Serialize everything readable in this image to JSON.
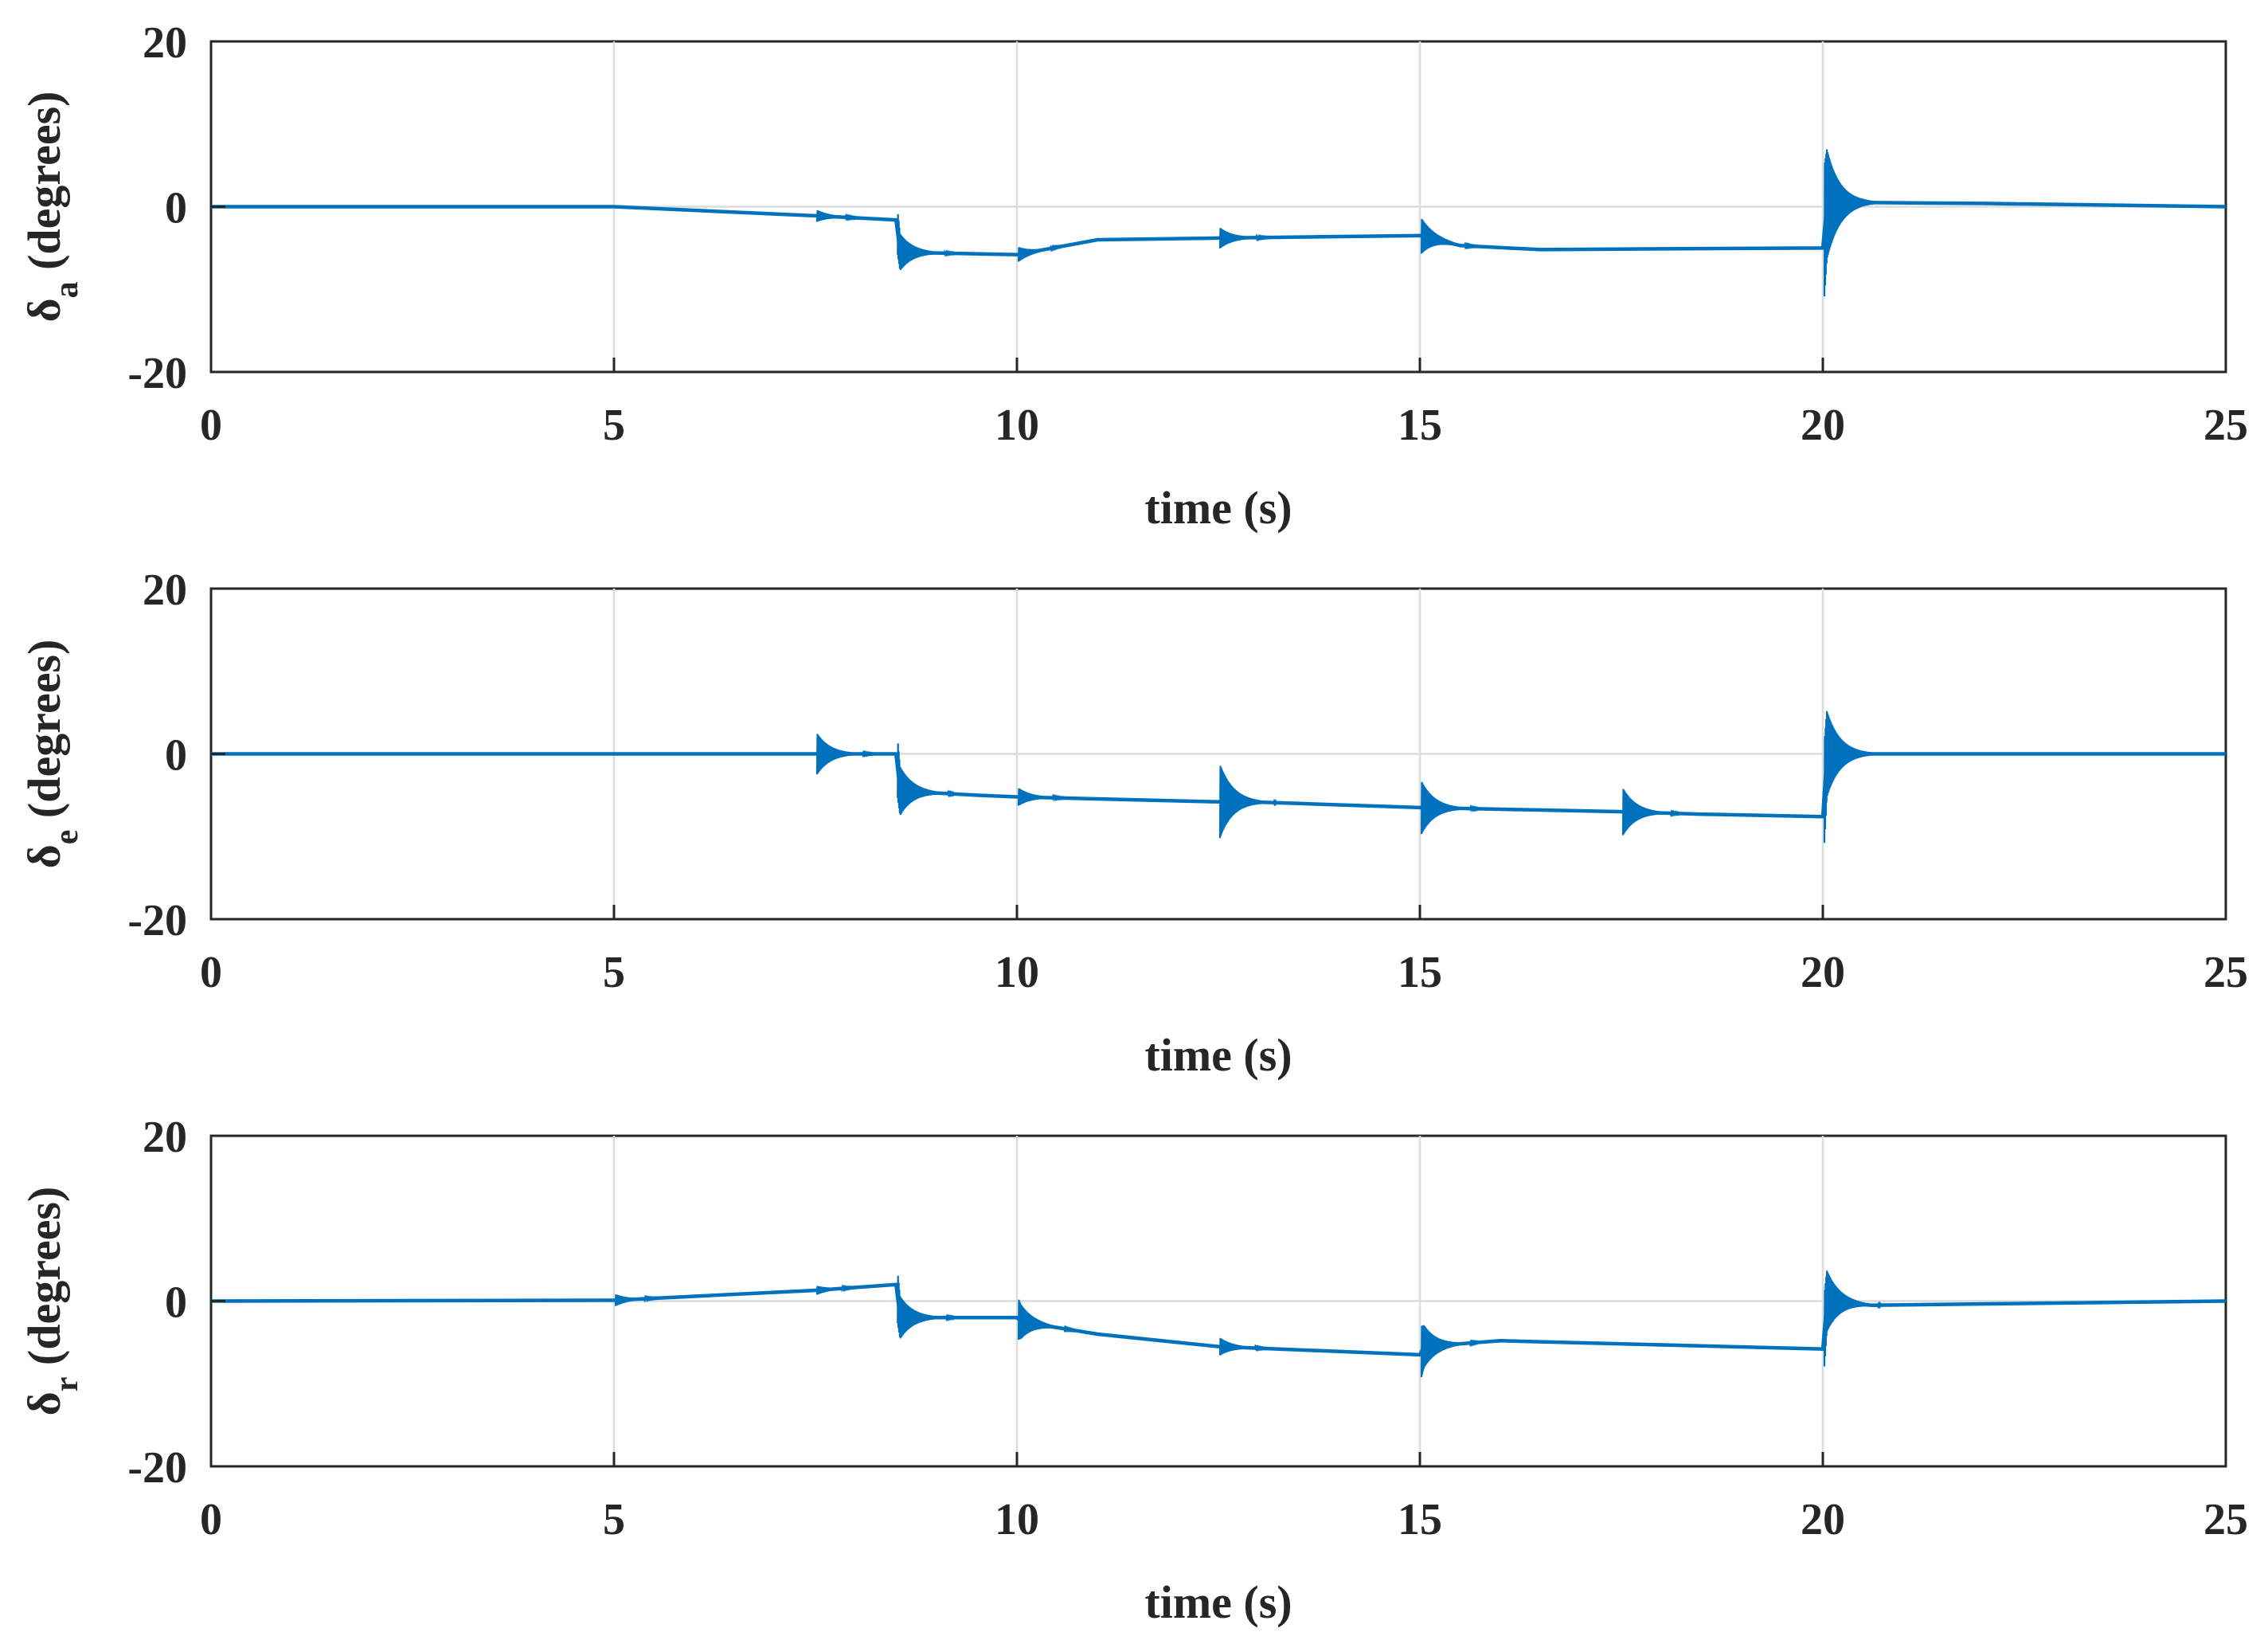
{
  "chart_data": [
    {
      "type": "line",
      "xlabel": "time (s)",
      "ylabel": {
        "prefix": "δ",
        "subscript": "a",
        "suffix": " (degrees)"
      },
      "xlim": [
        0,
        25
      ],
      "ylim": [
        -20,
        20
      ],
      "xticks": [
        0,
        5,
        10,
        15,
        20,
        25
      ],
      "yticks": [
        -20,
        0,
        20
      ],
      "grid": true,
      "color": "#0072BD",
      "series": [
        {
          "x": [
            0,
            5,
            7.5,
            8.5,
            8.55,
            9,
            10,
            11,
            12.5,
            15,
            15.5,
            16.5,
            18,
            20,
            20.05,
            20.5,
            22,
            25
          ],
          "values": [
            0,
            0,
            -1.1,
            -1.6,
            -5.5,
            -5.6,
            -5.8,
            -4.0,
            -3.8,
            -3.5,
            -4.7,
            -5.2,
            -5.1,
            -5.0,
            0.3,
            0.5,
            0.4,
            0
          ]
        }
      ],
      "transients": [
        {
          "t": 7.5,
          "amp": 0.8
        },
        {
          "t": 8.5,
          "amp": 3.0
        },
        {
          "t": 10.0,
          "amp": 1.0
        },
        {
          "t": 12.5,
          "amp": 1.4
        },
        {
          "t": 15.0,
          "amp": 2.4
        },
        {
          "t": 20.0,
          "amp": 9.0
        }
      ]
    },
    {
      "type": "line",
      "xlabel": "time (s)",
      "ylabel": {
        "prefix": "δ",
        "subscript": "e",
        "suffix": " (degrees)"
      },
      "xlim": [
        0,
        25
      ],
      "ylim": [
        -20,
        20
      ],
      "xticks": [
        0,
        5,
        10,
        15,
        20,
        25
      ],
      "yticks": [
        -20,
        0,
        20
      ],
      "grid": true,
      "color": "#0072BD",
      "series": [
        {
          "x": [
            0,
            5,
            7.5,
            8.5,
            8.55,
            9.5,
            10,
            12.5,
            12.55,
            13.5,
            15,
            16,
            17.5,
            18.5,
            20,
            20.05,
            21,
            25
          ],
          "values": [
            0,
            0,
            0,
            0,
            -4.5,
            -5.0,
            -5.2,
            -5.8,
            -5.7,
            -6.0,
            -6.5,
            -6.7,
            -7.0,
            -7.3,
            -7.6,
            0,
            0,
            0
          ]
        }
      ],
      "transients": [
        {
          "t": 7.5,
          "amp": 2.8
        },
        {
          "t": 8.5,
          "amp": 4.0
        },
        {
          "t": 10.0,
          "amp": 1.2
        },
        {
          "t": 12.5,
          "amp": 5.0
        },
        {
          "t": 15.0,
          "amp": 3.6
        },
        {
          "t": 17.5,
          "amp": 3.2
        },
        {
          "t": 20.0,
          "amp": 7.0
        }
      ]
    },
    {
      "type": "line",
      "xlabel": "time (s)",
      "ylabel": {
        "prefix": "δ",
        "subscript": "r",
        "suffix": " (degrees)"
      },
      "xlim": [
        0,
        25
      ],
      "ylim": [
        -20,
        20
      ],
      "xticks": [
        0,
        5,
        10,
        15,
        20,
        25
      ],
      "yticks": [
        -20,
        0,
        20
      ],
      "grid": true,
      "color": "#0072BD",
      "series": [
        {
          "x": [
            0,
            5,
            7.5,
            8.5,
            8.55,
            10,
            10.05,
            11,
            12.5,
            15,
            15.05,
            16,
            18,
            20,
            20.05,
            20.6,
            25
          ],
          "values": [
            0,
            0.1,
            1.3,
            2.0,
            -2.0,
            -2.0,
            -2.5,
            -4.0,
            -5.5,
            -6.5,
            -5.5,
            -4.8,
            -5.3,
            -5.8,
            0,
            -0.5,
            0
          ]
        }
      ],
      "transients": [
        {
          "t": 5.0,
          "amp": 0.8
        },
        {
          "t": 7.5,
          "amp": 0.6
        },
        {
          "t": 8.5,
          "amp": 3.5
        },
        {
          "t": 10.0,
          "amp": 2.8
        },
        {
          "t": 12.5,
          "amp": 1.2
        },
        {
          "t": 15.0,
          "amp": 3.5
        },
        {
          "t": 20.0,
          "amp": 5.0
        }
      ]
    }
  ]
}
